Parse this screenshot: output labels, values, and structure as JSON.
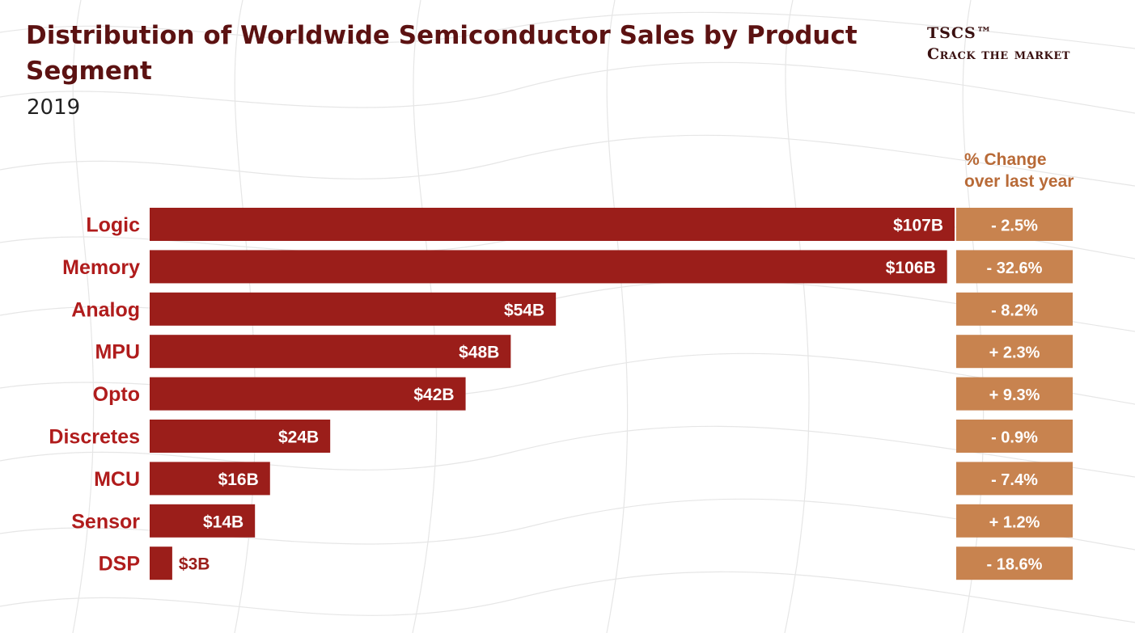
{
  "title": "Distribution of Worldwide Semiconductor Sales by Product Segment",
  "subtitle": "2019",
  "brand": {
    "top": "TSCS™",
    "bottom": "Crack the market"
  },
  "pct_header": {
    "line1": "% Change",
    "line2": "over last year"
  },
  "colors": {
    "bar": "#9b1e1a",
    "pct_box": "#c8834f",
    "category_label": "#b01c1c",
    "title": "#5c1212"
  },
  "chart_data": {
    "type": "bar",
    "orientation": "horizontal",
    "title": "Distribution of Worldwide Semiconductor Sales by Product Segment",
    "subtitle": "2019",
    "categories": [
      "Logic",
      "Memory",
      "Analog",
      "MPU",
      "Opto",
      "Discretes",
      "MCU",
      "Sensor",
      "DSP"
    ],
    "values": [
      107,
      106,
      54,
      48,
      42,
      24,
      16,
      14,
      3
    ],
    "value_labels": [
      "$107B",
      "$106B",
      "$54B",
      "$48B",
      "$42B",
      "$24B",
      "$16B",
      "$14B",
      "$3B"
    ],
    "pct_change": [
      -2.5,
      -32.6,
      -8.2,
      2.3,
      9.3,
      -0.9,
      -7.4,
      1.2,
      -18.6
    ],
    "pct_change_labels": [
      "- 2.5%",
      "- 32.6%",
      "- 8.2%",
      "+ 2.3%",
      "+ 9.3%",
      "- 0.9%",
      "- 7.4%",
      "+ 1.2%",
      "- 18.6%"
    ],
    "xlim": [
      0,
      107
    ],
    "grid": false,
    "legend": "none"
  }
}
